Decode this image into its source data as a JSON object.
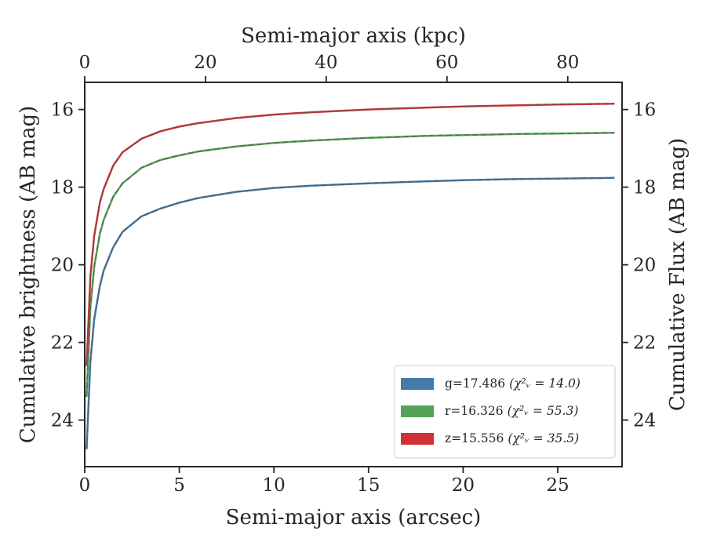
{
  "chart_data": {
    "type": "line",
    "xlabel": "Semi-major axis (arcsec)",
    "ylabel": "Cumulative brightness (AB mag)",
    "top_xlabel": "Semi-major axis (kpc)",
    "right_ylabel": "Cumulative Flux (AB mag)",
    "xlim": [
      0,
      28.4
    ],
    "ylim": [
      25.2,
      15.3
    ],
    "y_inverted": true,
    "top_xlim": [
      0,
      89
    ],
    "xticks": [
      0,
      5,
      10,
      15,
      20,
      25
    ],
    "yticks": [
      16,
      18,
      20,
      22,
      24
    ],
    "top_xticks": [
      0,
      20,
      40,
      60,
      80
    ],
    "legend_position": "lower-right",
    "series": [
      {
        "name": "g",
        "legend_label": "g=17.486",
        "legend_stat": "(χ²ᵥ = 14.0)",
        "color": "#4479a8",
        "x": [
          0.1,
          0.3,
          0.5,
          0.8,
          1.0,
          1.5,
          2.0,
          3.0,
          4.0,
          5.0,
          6.0,
          8.0,
          10.0,
          12.0,
          15.0,
          18.0,
          20.0,
          23.0,
          25.0,
          28.0
        ],
        "y": [
          24.75,
          22.5,
          21.4,
          20.55,
          20.15,
          19.55,
          19.15,
          18.75,
          18.55,
          18.4,
          18.28,
          18.12,
          18.02,
          17.96,
          17.9,
          17.85,
          17.82,
          17.79,
          17.78,
          17.76
        ]
      },
      {
        "name": "r",
        "legend_label": "r=16.326",
        "legend_stat": "(χ²ᵥ = 55.3)",
        "color": "#55a455",
        "x": [
          0.1,
          0.3,
          0.5,
          0.8,
          1.0,
          1.5,
          2.0,
          3.0,
          4.0,
          5.0,
          6.0,
          8.0,
          10.0,
          12.0,
          15.0,
          18.0,
          20.0,
          23.0,
          25.0,
          28.0
        ],
        "y": [
          23.4,
          21.1,
          20.05,
          19.2,
          18.85,
          18.25,
          17.9,
          17.5,
          17.3,
          17.18,
          17.08,
          16.95,
          16.86,
          16.8,
          16.73,
          16.68,
          16.66,
          16.63,
          16.62,
          16.6
        ]
      },
      {
        "name": "z",
        "legend_label": "z=15.556",
        "legend_stat": "(χ²ᵥ = 35.5)",
        "color": "#d03234",
        "x": [
          0.1,
          0.3,
          0.5,
          0.8,
          1.0,
          1.5,
          2.0,
          3.0,
          4.0,
          5.0,
          6.0,
          8.0,
          10.0,
          12.0,
          15.0,
          18.0,
          20.0,
          23.0,
          25.0,
          28.0
        ],
        "y": [
          22.6,
          20.3,
          19.25,
          18.4,
          18.05,
          17.45,
          17.1,
          16.75,
          16.56,
          16.44,
          16.35,
          16.22,
          16.13,
          16.07,
          16.0,
          15.95,
          15.92,
          15.89,
          15.87,
          15.85
        ]
      }
    ]
  }
}
